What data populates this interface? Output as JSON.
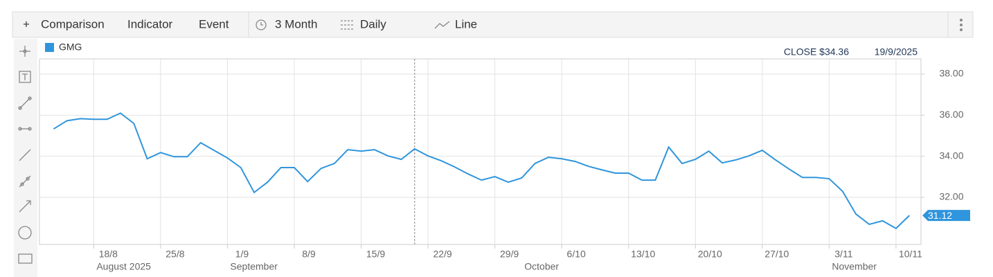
{
  "toolbar": {
    "items": [
      "Comparison",
      "Indicator",
      "Event",
      "3 Month",
      "Daily",
      "Line"
    ]
  },
  "chart_data": {
    "type": "line",
    "categories": [
      null,
      null,
      null,
      "18/8",
      null,
      null,
      null,
      null,
      "25/8",
      null,
      null,
      null,
      null,
      "1/9",
      null,
      null,
      null,
      null,
      "8/9",
      null,
      null,
      null,
      null,
      "15/9",
      null,
      null,
      null,
      null,
      "22/9",
      null,
      null,
      null,
      null,
      "29/9",
      null,
      null,
      null,
      null,
      "6/10",
      null,
      null,
      null,
      null,
      "13/10",
      null,
      null,
      null,
      null,
      "20/10",
      null,
      null,
      null,
      null,
      "27/10",
      null,
      null,
      null,
      null,
      "3/11",
      null,
      null,
      null,
      null,
      "10/11",
      null
    ],
    "month_categories": [
      null,
      null,
      null,
      "August 2025",
      null,
      null,
      null,
      null,
      null,
      null,
      null,
      null,
      null,
      "September",
      null,
      null,
      null,
      null,
      null,
      null,
      null,
      null,
      null,
      null,
      null,
      null,
      null,
      null,
      null,
      null,
      null,
      null,
      null,
      null,
      null,
      "October",
      null,
      null,
      null,
      null,
      null,
      null,
      null,
      null,
      null,
      null,
      null,
      null,
      null,
      null,
      null,
      null,
      null,
      null,
      null,
      null,
      null,
      null,
      "November",
      null,
      null,
      null,
      null,
      null,
      null
    ],
    "series": [
      {
        "name": "GMG",
        "color": "#2f95dc",
        "values": [
          35.33,
          35.73,
          35.83,
          35.8,
          35.8,
          36.1,
          35.6,
          33.88,
          34.18,
          33.98,
          33.98,
          34.66,
          34.29,
          33.92,
          33.45,
          32.24,
          32.74,
          33.45,
          33.45,
          32.77,
          33.41,
          33.65,
          34.32,
          34.25,
          34.32,
          34.02,
          33.85,
          34.36,
          34.02,
          33.78,
          33.48,
          33.14,
          32.84,
          33.01,
          32.74,
          32.94,
          33.65,
          33.95,
          33.88,
          33.75,
          33.51,
          33.34,
          33.18,
          33.18,
          32.84,
          32.84,
          34.45,
          33.65,
          33.85,
          34.25,
          33.68,
          33.82,
          34.02,
          34.29,
          33.82,
          33.38,
          32.97,
          32.97,
          32.91,
          32.3,
          31.19,
          30.69,
          30.86,
          30.49,
          31.12
        ],
        "last_value_label": "31.12"
      }
    ],
    "crosshair": {
      "label": "CLOSE $34.36",
      "date": "19/9/2025"
    },
    "ylim": [
      29.71,
      38.74
    ],
    "yticks": [
      {
        "value": 32,
        "label": "32.00"
      },
      {
        "value": 34,
        "label": "34.00"
      },
      {
        "value": 36,
        "label": "36.00"
      },
      {
        "value": 38,
        "label": "38.00"
      }
    ],
    "grid": true
  }
}
